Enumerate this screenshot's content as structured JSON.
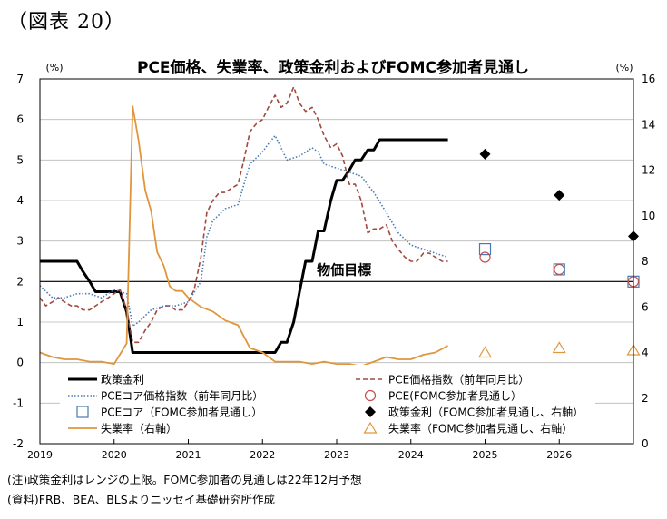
{
  "figure_label": "（図表 20）",
  "notes": [
    "(注)政策金利はレンジの上限。FOMC参加者の見通しは22年12月予想",
    "(資料)FRB、BEA、BLSよりニッセイ基礎研究所作成"
  ],
  "chart_data": {
    "type": "line",
    "title": "PCE価格、失業率、政策金利およびFOMC参加者見通し",
    "left_unit": "(%)",
    "right_unit": "(%)",
    "ylim_left": [
      -2,
      7
    ],
    "yticks_left": [
      -2,
      -1,
      0,
      1,
      2,
      3,
      4,
      5,
      6,
      7
    ],
    "ylim_right": [
      0,
      16
    ],
    "yticks_right": [
      0,
      2,
      4,
      6,
      8,
      10,
      12,
      14,
      16
    ],
    "xlim": [
      2019.0,
      2027.0
    ],
    "xticks": [
      2019,
      2020,
      2021,
      2022,
      2023,
      2024,
      2025,
      2026
    ],
    "grid": true,
    "reference_line": {
      "label": "物価目標",
      "value": 2
    },
    "colors": {
      "policy": "#000000",
      "pce": "#a04a40",
      "core": "#4a7ab5",
      "unemp": "#e0963c"
    },
    "series": [
      {
        "name": "政策金利",
        "key": "policy",
        "axis": "left",
        "style": "solid-thick",
        "x": [
          2019.0,
          2019.5,
          2019.58,
          2019.67,
          2019.75,
          2019.83,
          2020.08,
          2020.17,
          2020.25,
          2020.5,
          2021.0,
          2021.5,
          2022.0,
          2022.17,
          2022.25,
          2022.33,
          2022.42,
          2022.5,
          2022.58,
          2022.67,
          2022.75,
          2022.83,
          2022.92,
          2023.0,
          2023.08,
          2023.17,
          2023.25,
          2023.33,
          2023.42,
          2023.5,
          2023.58,
          2023.67,
          2023.75,
          2024.0,
          2024.25,
          2024.5
        ],
        "y": [
          2.5,
          2.5,
          2.25,
          2.0,
          1.75,
          1.75,
          1.75,
          1.25,
          0.25,
          0.25,
          0.25,
          0.25,
          0.25,
          0.25,
          0.5,
          0.5,
          1.0,
          1.75,
          2.5,
          2.5,
          3.25,
          3.25,
          4.0,
          4.5,
          4.5,
          4.75,
          5.0,
          5.0,
          5.25,
          5.25,
          5.5,
          5.5,
          5.5,
          5.5,
          5.5,
          5.5
        ]
      },
      {
        "name": "PCE価格指数（前年同月比）",
        "key": "pce",
        "axis": "left",
        "style": "dashed",
        "x": [
          2019.0,
          2019.08,
          2019.17,
          2019.25,
          2019.33,
          2019.42,
          2019.5,
          2019.58,
          2019.67,
          2019.75,
          2019.83,
          2019.92,
          2020.0,
          2020.08,
          2020.17,
          2020.25,
          2020.33,
          2020.42,
          2020.5,
          2020.58,
          2020.67,
          2020.75,
          2020.83,
          2020.92,
          2021.0,
          2021.08,
          2021.17,
          2021.25,
          2021.33,
          2021.42,
          2021.5,
          2021.58,
          2021.67,
          2021.75,
          2021.83,
          2021.92,
          2022.0,
          2022.08,
          2022.17,
          2022.25,
          2022.33,
          2022.42,
          2022.5,
          2022.58,
          2022.67,
          2022.75,
          2022.83,
          2022.92,
          2023.0,
          2023.08,
          2023.17,
          2023.25,
          2023.33,
          2023.42,
          2023.5,
          2023.58,
          2023.67,
          2023.75,
          2023.83,
          2023.92,
          2024.0,
          2024.08,
          2024.17,
          2024.25,
          2024.33,
          2024.42,
          2024.5
        ],
        "y": [
          1.6,
          1.4,
          1.5,
          1.6,
          1.5,
          1.4,
          1.4,
          1.3,
          1.3,
          1.4,
          1.5,
          1.6,
          1.7,
          1.8,
          1.3,
          0.5,
          0.5,
          0.8,
          1.0,
          1.3,
          1.4,
          1.4,
          1.3,
          1.3,
          1.5,
          1.8,
          2.6,
          3.7,
          4.0,
          4.2,
          4.2,
          4.3,
          4.4,
          5.0,
          5.7,
          5.9,
          6.0,
          6.3,
          6.6,
          6.3,
          6.4,
          6.8,
          6.4,
          6.2,
          6.3,
          6.0,
          5.6,
          5.3,
          5.4,
          5.1,
          4.4,
          4.4,
          4.0,
          3.2,
          3.3,
          3.3,
          3.4,
          3.0,
          2.8,
          2.6,
          2.5,
          2.5,
          2.7,
          2.7,
          2.6,
          2.5,
          2.5
        ]
      },
      {
        "name": "PCEコア価格指数（前年同月比）",
        "key": "core",
        "axis": "left",
        "style": "dotted",
        "x": [
          2019.0,
          2019.17,
          2019.33,
          2019.5,
          2019.67,
          2019.83,
          2020.0,
          2020.17,
          2020.25,
          2020.33,
          2020.5,
          2020.67,
          2020.83,
          2021.0,
          2021.17,
          2021.25,
          2021.33,
          2021.5,
          2021.67,
          2021.83,
          2022.0,
          2022.08,
          2022.17,
          2022.25,
          2022.33,
          2022.5,
          2022.67,
          2022.75,
          2022.83,
          2023.0,
          2023.17,
          2023.33,
          2023.5,
          2023.67,
          2023.83,
          2024.0,
          2024.17,
          2024.33,
          2024.5
        ],
        "y": [
          1.9,
          1.6,
          1.6,
          1.7,
          1.7,
          1.6,
          1.8,
          1.7,
          0.9,
          1.0,
          1.3,
          1.4,
          1.4,
          1.5,
          2.0,
          3.1,
          3.5,
          3.8,
          3.9,
          4.9,
          5.2,
          5.4,
          5.6,
          5.3,
          5.0,
          5.1,
          5.3,
          5.2,
          4.9,
          4.8,
          4.7,
          4.6,
          4.2,
          3.7,
          3.2,
          2.9,
          2.8,
          2.7,
          2.6
        ]
      },
      {
        "name": "失業率（右軸）",
        "key": "unemp",
        "axis": "right",
        "style": "solid",
        "x": [
          2019.0,
          2019.17,
          2019.33,
          2019.5,
          2019.67,
          2019.83,
          2020.0,
          2020.17,
          2020.25,
          2020.33,
          2020.42,
          2020.5,
          2020.58,
          2020.67,
          2020.75,
          2020.83,
          2020.92,
          2021.0,
          2021.17,
          2021.33,
          2021.5,
          2021.67,
          2021.83,
          2022.0,
          2022.17,
          2022.33,
          2022.5,
          2022.67,
          2022.83,
          2023.0,
          2023.17,
          2023.33,
          2023.5,
          2023.67,
          2023.83,
          2024.0,
          2024.17,
          2024.33,
          2024.5
        ],
        "y": [
          4.0,
          3.8,
          3.7,
          3.7,
          3.6,
          3.6,
          3.5,
          4.4,
          14.8,
          13.3,
          11.1,
          10.2,
          8.4,
          7.8,
          6.9,
          6.7,
          6.7,
          6.4,
          6.0,
          5.8,
          5.4,
          5.2,
          4.2,
          4.0,
          3.6,
          3.6,
          3.6,
          3.5,
          3.6,
          3.5,
          3.5,
          3.4,
          3.6,
          3.8,
          3.7,
          3.7,
          3.9,
          4.0,
          4.3
        ]
      },
      {
        "name": "PCEコア（FOMC参加者見通し）",
        "key": "core_proj",
        "axis": "left",
        "marker": "square",
        "x": [
          2025,
          2026,
          2027
        ],
        "y": [
          2.8,
          2.3,
          2.0
        ]
      },
      {
        "name": "PCE（FOMC参加者見通し）",
        "key": "pce_proj",
        "axis": "left",
        "marker": "circle",
        "x": [
          2025,
          2026,
          2027
        ],
        "y": [
          2.6,
          2.3,
          2.0
        ]
      },
      {
        "name": "政策金利（FOMC参加者見通し、右軸）",
        "key": "policy_proj",
        "axis": "right",
        "marker": "diamond",
        "x": [
          2025,
          2026,
          2027
        ],
        "y": [
          12.7,
          10.9,
          9.1
        ]
      },
      {
        "name": "失業率（FOMC参加者見通し、右軸）",
        "key": "unemp_proj",
        "axis": "right",
        "marker": "triangle",
        "x": [
          2025,
          2026,
          2027
        ],
        "y": [
          4.0,
          4.2,
          4.1
        ]
      }
    ],
    "legend": [
      {
        "key": "policy",
        "label": "政策金利"
      },
      {
        "key": "pce",
        "label": "PCE価格指数（前年同月比）"
      },
      {
        "key": "core",
        "label": "PCEコア価格指数（前年同月比）"
      },
      {
        "key": "pce_proj",
        "label": "PCE(FOMC参加者見通し）"
      },
      {
        "key": "core_proj",
        "label": "PCEコア（FOMC参加者見通し）"
      },
      {
        "key": "policy_proj",
        "label": "政策金利（FOMC参加者見通し、右軸）"
      },
      {
        "key": "unemp",
        "label": "失業率（右軸）"
      },
      {
        "key": "unemp_proj",
        "label": "失業率（FOMC参加者見通し、右軸）"
      }
    ]
  }
}
